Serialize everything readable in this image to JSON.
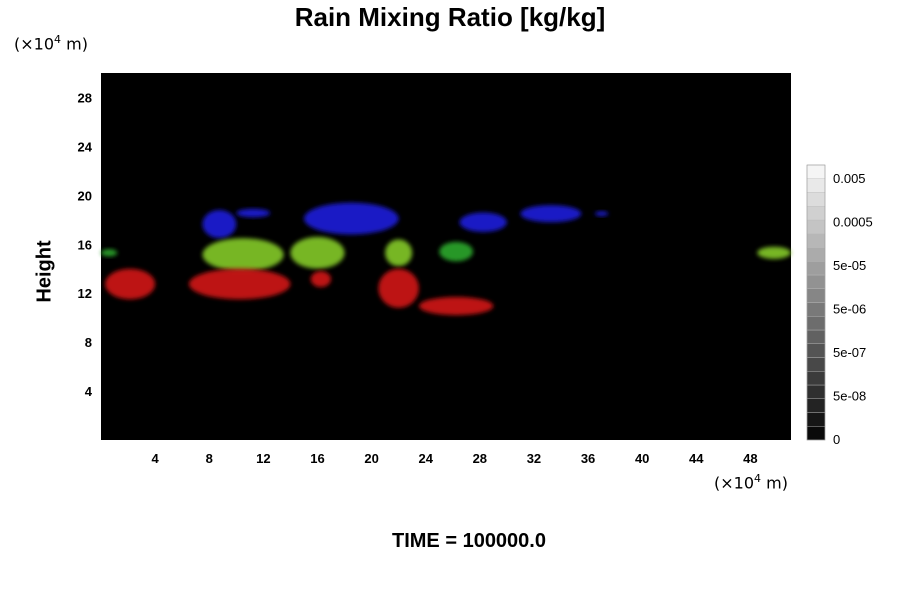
{
  "chart_data": {
    "type": "heatmap",
    "title": "Rain Mixing Ratio [kg/kg]",
    "ylabel": "Height",
    "xlabel": "",
    "x_unit": {
      "prefix": "(×10",
      "exp": "4",
      "suffix": " m)"
    },
    "y_unit": {
      "prefix": "(×10",
      "exp": "4",
      "suffix": " m)"
    },
    "xlim": [
      0,
      51
    ],
    "ylim": [
      0,
      30
    ],
    "x_ticks": [
      4,
      8,
      12,
      16,
      20,
      24,
      28,
      32,
      36,
      40,
      44,
      48
    ],
    "y_ticks": [
      4,
      8,
      12,
      16,
      20,
      24,
      28
    ],
    "grid": false,
    "background_color": "#000000",
    "colorbar": {
      "levels": 20,
      "labels": [
        "0.005",
        "0.0005",
        "5e-05",
        "5e-06",
        "5e-07",
        "5e-08",
        "0"
      ]
    },
    "regions": [
      {
        "layer": "upper",
        "color": "#1a1ad0",
        "x": [
          7.5,
          10
        ],
        "y": [
          16.5,
          18.8
        ]
      },
      {
        "layer": "upper",
        "color": "#1a1ad0",
        "x": [
          10,
          12.5
        ],
        "y": [
          18.2,
          18.9
        ]
      },
      {
        "layer": "upper",
        "color": "#1a1ad0",
        "x": [
          15,
          22
        ],
        "y": [
          16.8,
          19.4
        ]
      },
      {
        "layer": "upper",
        "color": "#1a1ad0",
        "x": [
          26.5,
          30
        ],
        "y": [
          17,
          18.6
        ]
      },
      {
        "layer": "upper",
        "color": "#1a1ad0",
        "x": [
          31,
          35.5
        ],
        "y": [
          17.8,
          19.2
        ]
      },
      {
        "layer": "upper",
        "color": "#1a1ad0",
        "x": [
          36.5,
          37.5
        ],
        "y": [
          18.3,
          18.7
        ]
      },
      {
        "layer": "middle",
        "color": "#7ec028",
        "x": [
          7.5,
          13.5
        ],
        "y": [
          13.8,
          16.5
        ]
      },
      {
        "layer": "middle",
        "color": "#7ec028",
        "x": [
          14,
          18
        ],
        "y": [
          14,
          16.6
        ]
      },
      {
        "layer": "middle",
        "color": "#7ec028",
        "x": [
          21,
          23
        ],
        "y": [
          14.2,
          16.4
        ]
      },
      {
        "layer": "middle",
        "color": "#2aa02a",
        "x": [
          25,
          27.5
        ],
        "y": [
          14.6,
          16.2
        ]
      },
      {
        "layer": "middle",
        "color": "#2aa02a",
        "x": [
          0,
          1.2
        ],
        "y": [
          15,
          15.6
        ]
      },
      {
        "layer": "middle",
        "color": "#7ec028",
        "x": [
          48.5,
          51
        ],
        "y": [
          14.8,
          15.8
        ]
      },
      {
        "layer": "lower",
        "color": "#c81414",
        "x": [
          0.3,
          4
        ],
        "y": [
          11.5,
          14
        ]
      },
      {
        "layer": "lower",
        "color": "#c81414",
        "x": [
          6.5,
          14
        ],
        "y": [
          11.5,
          14
        ]
      },
      {
        "layer": "lower",
        "color": "#c81414",
        "x": [
          15.5,
          17
        ],
        "y": [
          12.5,
          13.8
        ]
      },
      {
        "layer": "lower",
        "color": "#c81414",
        "x": [
          20.5,
          23.5
        ],
        "y": [
          10.8,
          14
        ]
      },
      {
        "layer": "lower",
        "color": "#c81414",
        "x": [
          23.5,
          29
        ],
        "y": [
          10.2,
          11.7
        ]
      }
    ]
  },
  "time_label": "TIME = 100000.0"
}
